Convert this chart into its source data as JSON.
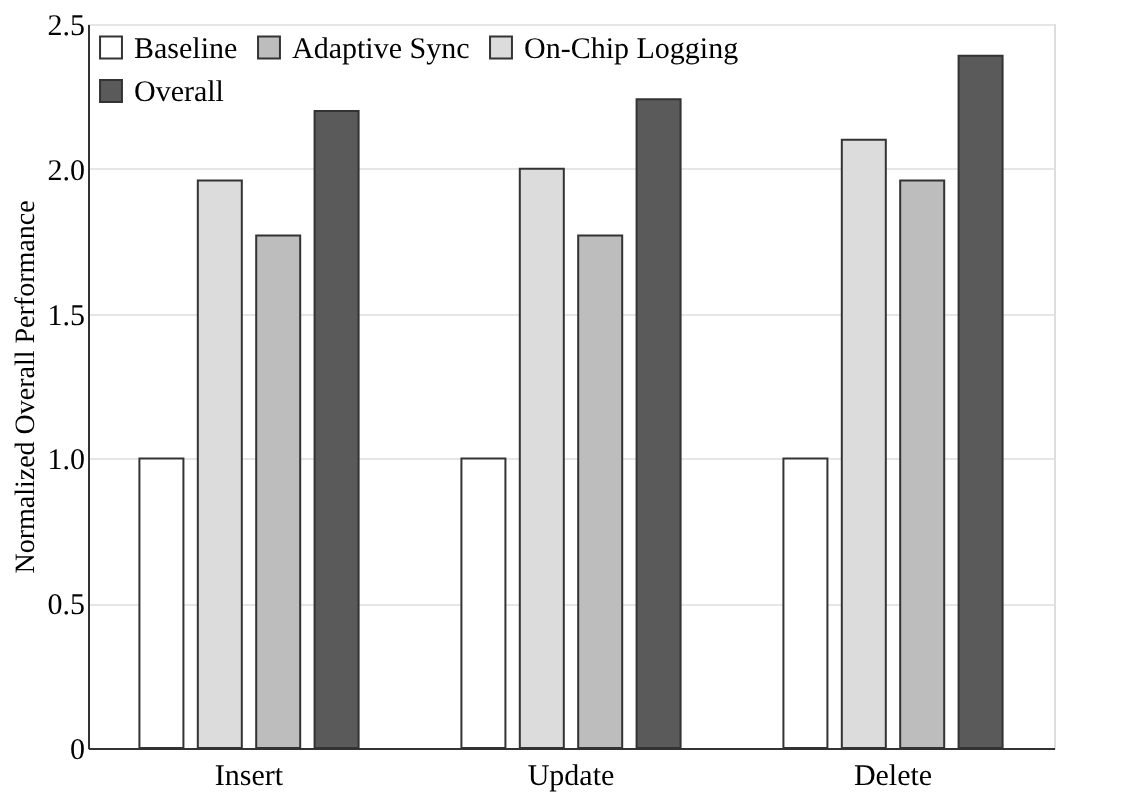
{
  "chart_data": {
    "type": "bar",
    "ylabel": "Normalized Overall Performance",
    "categories": [
      "Insert",
      "Update",
      "Delete"
    ],
    "series": [
      {
        "name": "Baseline",
        "color": "#ffffff",
        "values": [
          1.0,
          1.0,
          1.0
        ]
      },
      {
        "name": "On-Chip Logging",
        "color": "#dcdcdc",
        "values": [
          1.96,
          2.0,
          2.1
        ]
      },
      {
        "name": "Adaptive Sync",
        "color": "#bdbdbd",
        "values": [
          1.77,
          1.77,
          1.96
        ]
      },
      {
        "name": "Overall",
        "color": "#5a5a5a",
        "values": [
          2.2,
          2.24,
          2.39
        ]
      }
    ],
    "ylim": [
      0,
      2.5
    ],
    "yticks": [
      {
        "value": 0,
        "label": "0"
      },
      {
        "value": 0.5,
        "label": "0.5"
      },
      {
        "value": 1.0,
        "label": "1.0"
      },
      {
        "value": 1.5,
        "label": "1.5"
      },
      {
        "value": 2.0,
        "label": "2.0"
      },
      {
        "value": 2.5,
        "label": "2.5"
      }
    ],
    "grid": "y",
    "legend": "top left"
  }
}
